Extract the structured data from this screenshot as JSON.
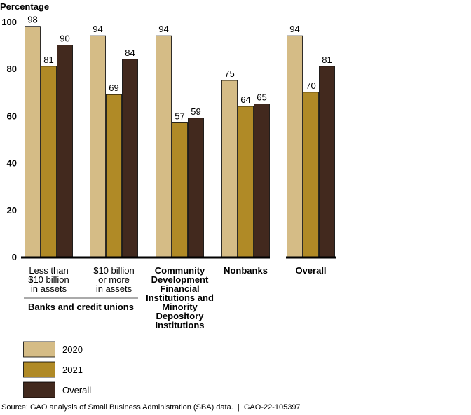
{
  "chart_data": {
    "type": "bar",
    "title": "",
    "ylabel": "Percentage",
    "xlabel": "",
    "ylim": [
      0,
      100
    ],
    "yticks": [
      0,
      20,
      40,
      60,
      80,
      100
    ],
    "grid": false,
    "legend_position": "bottom-left",
    "categories": [
      {
        "lines": [
          "Less than",
          "$10 billion",
          "in assets"
        ],
        "bold": false
      },
      {
        "lines": [
          "$10 billion",
          "or more",
          "in assets"
        ],
        "bold": false
      },
      {
        "lines": [
          "Community",
          "Development",
          "Financial",
          "Institutions and",
          "Minority",
          "Depository",
          "Institutions"
        ],
        "bold": true
      },
      {
        "lines": [
          "Nonbanks"
        ],
        "bold": true
      },
      {
        "lines": [
          "Overall"
        ],
        "bold": true
      }
    ],
    "group_label": {
      "text": "Banks and credit unions",
      "spans_categories": [
        0,
        1
      ]
    },
    "series": [
      {
        "name": "2020",
        "color": "#D5BC86",
        "values": [
          98,
          94,
          94,
          75,
          94
        ]
      },
      {
        "name": "2021",
        "color": "#B08A26",
        "values": [
          81,
          69,
          57,
          64,
          70
        ]
      },
      {
        "name": "Overall",
        "color": "#42291E",
        "values": [
          90,
          84,
          59,
          65,
          81
        ]
      }
    ]
  },
  "source": "Source: GAO analysis of Small Business Administration (SBA) data.  |  GAO-22-105397"
}
